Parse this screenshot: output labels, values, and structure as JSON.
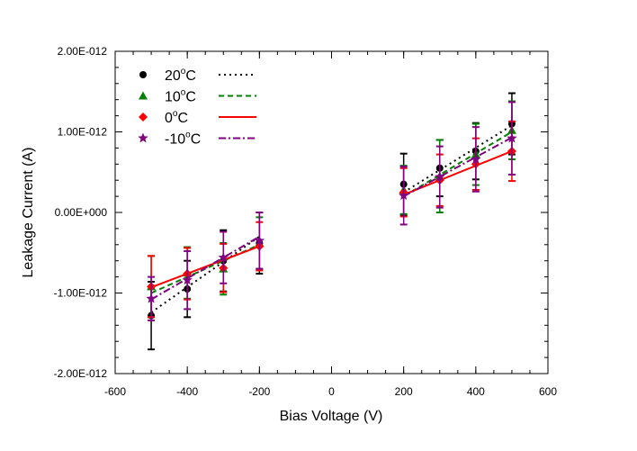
{
  "chart_data": {
    "type": "scatter",
    "title": "",
    "xlabel": "Bias Voltage (V)",
    "ylabel": "Leakage Current (A)",
    "xlim": [
      -600,
      600
    ],
    "ylim": [
      -2e-12,
      2e-12
    ],
    "x_major_ticks": [
      -600,
      -400,
      -200,
      0,
      200,
      400,
      600
    ],
    "x_tick_labels": [
      "-600",
      "-400",
      "-200",
      "0",
      "200",
      "400",
      "600"
    ],
    "y_major_ticks": [
      2e-12,
      1e-12,
      0,
      -1e-12,
      -2e-12
    ],
    "y_tick_labels": [
      "2.00E-012",
      "1.00E-012",
      "0.00E+000",
      "-1.00E-012",
      "-2.00E-012"
    ],
    "grid": false,
    "legend_position": "top-left",
    "series": [
      {
        "name": "20°C",
        "temperature": "20",
        "marker": "circle",
        "color": "#000000",
        "line_style": "dotted",
        "x": [
          -500,
          -400,
          -300,
          -200,
          200,
          300,
          400,
          500
        ],
        "y": [
          -1.28e-12,
          -9.5e-13,
          -6e-13,
          -3.8e-13,
          3.5e-13,
          5.5e-13,
          7.6e-13,
          1.1e-12
        ],
        "yerr": [
          4.2e-13,
          3.5e-13,
          3.8e-13,
          3.8e-13,
          3.8e-13,
          3.5e-13,
          3.5e-13,
          3.8e-13
        ],
        "fit_x": [
          -500,
          -200
        ],
        "fit_y": [
          -1.24e-12,
          -3e-13
        ],
        "fit_x2": [
          200,
          500
        ],
        "fit_y2": [
          2.5e-13,
          1.08e-12
        ]
      },
      {
        "name": "10°C",
        "temperature": "10",
        "marker": "triangle",
        "color": "#008000",
        "line_style": "dashed",
        "x": [
          -500,
          -400,
          -300,
          -200,
          200,
          300,
          400,
          500
        ],
        "y": [
          -9.2e-13,
          -7.5e-13,
          -7e-13,
          -3.8e-13,
          2.8e-13,
          4.5e-13,
          7.2e-13,
          1.02e-12
        ],
        "yerr": [
          3.8e-13,
          3.2e-13,
          3.2e-13,
          3.2e-13,
          3e-13,
          4.5e-13,
          3.8e-13,
          3.6e-13
        ],
        "fit_x": [
          -500,
          -200
        ],
        "fit_y": [
          -1e-12,
          -4e-13
        ],
        "fit_x2": [
          200,
          500
        ],
        "fit_y2": [
          2e-13,
          1e-12
        ]
      },
      {
        "name": "0°C",
        "temperature": "0",
        "marker": "diamond",
        "color": "#ff0000",
        "line_style": "solid",
        "x": [
          -500,
          -400,
          -300,
          -200,
          200,
          300,
          400,
          500
        ],
        "y": [
          -9.2e-13,
          -7.6e-13,
          -6.9e-13,
          -4.2e-13,
          2.5e-13,
          4e-13,
          6e-13,
          7.6e-13
        ],
        "yerr": [
          3.8e-13,
          3.2e-13,
          3e-13,
          3e-13,
          3e-13,
          3.2e-13,
          3.2e-13,
          3.7e-13
        ],
        "fit_x": [
          -500,
          -200
        ],
        "fit_y": [
          -9.3e-13,
          -4.2e-13
        ],
        "fit_x2": [
          200,
          500
        ],
        "fit_y2": [
          2.2e-13,
          7.6e-13
        ]
      },
      {
        "name": "-10°C",
        "temperature": "-10",
        "marker": "star",
        "color": "#800080",
        "line_style": "dashdot",
        "x": [
          -500,
          -400,
          -300,
          -200,
          200,
          300,
          400,
          500
        ],
        "y": [
          -1.07e-12,
          -8.4e-13,
          -5.6e-13,
          -3.5e-13,
          2.1e-13,
          4.4e-13,
          6.6e-13,
          9.2e-13
        ],
        "yerr": [
          2.7e-13,
          3.6e-13,
          3.2e-13,
          3.5e-13,
          3.6e-13,
          3.8e-13,
          4e-13,
          4.5e-13
        ],
        "fit_x": [
          -500,
          -200
        ],
        "fit_y": [
          -1.08e-12,
          -3e-13
        ],
        "fit_x2": [
          200,
          500
        ],
        "fit_y2": [
          2e-13,
          9.3e-13
        ]
      }
    ]
  }
}
